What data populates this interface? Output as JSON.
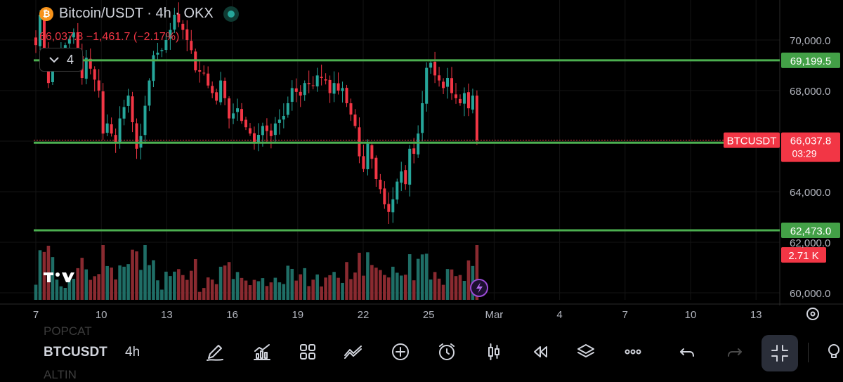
{
  "header": {
    "coin_glyph": "₿",
    "title": "Bitcoin/USDT · 4h · OKX",
    "price_line": "66,037.8 −1,461.7 (−2.17%)"
  },
  "indicators": {
    "count": "4"
  },
  "colors": {
    "up": "#26a69a",
    "down": "#f23645",
    "level_line": "#4caf50",
    "background": "#000000"
  },
  "chart_data": {
    "type": "candlestick",
    "symbol": "BTCUSDT",
    "ylim": [
      59800,
      71200
    ],
    "price_ticks": [
      "70,000.0",
      "68,000.0",
      "64,000.0",
      "62,000.0",
      "60,000.0"
    ],
    "x_ticks": [
      "7",
      "10",
      "13",
      "16",
      "19",
      "22",
      "25",
      "Mar",
      "4",
      "7",
      "10",
      "13"
    ],
    "horizontal_levels": [
      {
        "price": 69199.5,
        "label": "69,199.5"
      },
      {
        "price": 65936.6,
        "label": "65,936.6"
      },
      {
        "price": 62473.0,
        "label": "62,473.0"
      }
    ],
    "last_price": {
      "symbol_label": "BTCUSDT",
      "label": "66,037.8",
      "countdown": "03:29",
      "value": 66037.8
    },
    "volume_label": "2.71 K",
    "close_path": [
      [
        0,
        69800
      ],
      [
        1,
        71000
      ],
      [
        3,
        68300
      ],
      [
        4,
        69200
      ],
      [
        7,
        69800
      ],
      [
        9,
        70300
      ],
      [
        11,
        68500
      ],
      [
        12,
        69300
      ],
      [
        15,
        68000
      ],
      [
        16,
        66300
      ],
      [
        17,
        66700
      ],
      [
        19,
        65900
      ],
      [
        20,
        66900
      ],
      [
        22,
        67800
      ],
      [
        24,
        65700
      ],
      [
        25,
        66200
      ],
      [
        26,
        67400
      ],
      [
        28,
        69400
      ],
      [
        30,
        69600
      ],
      [
        32,
        70400
      ],
      [
        33,
        71000
      ],
      [
        35,
        70400
      ],
      [
        37,
        69600
      ],
      [
        38,
        68800
      ],
      [
        40,
        68700
      ],
      [
        41,
        68200
      ],
      [
        43,
        67600
      ],
      [
        44,
        68400
      ],
      [
        45,
        67700
      ],
      [
        46,
        66900
      ],
      [
        48,
        67300
      ],
      [
        49,
        66800
      ],
      [
        51,
        66300
      ],
      [
        52,
        65900
      ],
      [
        54,
        66600
      ],
      [
        56,
        66200
      ],
      [
        57,
        66700
      ],
      [
        59,
        67000
      ],
      [
        60,
        67500
      ],
      [
        61,
        68100
      ],
      [
        63,
        67800
      ],
      [
        64,
        68300
      ],
      [
        66,
        68200
      ],
      [
        67,
        68600
      ],
      [
        69,
        68400
      ],
      [
        70,
        67900
      ],
      [
        71,
        68300
      ],
      [
        72,
        68000
      ],
      [
        73,
        68100
      ],
      [
        74,
        67500
      ],
      [
        76,
        66600
      ],
      [
        77,
        65400
      ],
      [
        78,
        64900
      ],
      [
        79,
        65900
      ],
      [
        80,
        65300
      ],
      [
        81,
        64500
      ],
      [
        82,
        64100
      ],
      [
        83,
        63500
      ],
      [
        84,
        63200
      ],
      [
        85,
        63700
      ],
      [
        86,
        64400
      ],
      [
        87,
        64800
      ],
      [
        88,
        64300
      ],
      [
        89,
        65700
      ],
      [
        90,
        65500
      ],
      [
        91,
        66300
      ],
      [
        92,
        67500
      ],
      [
        93,
        68900
      ],
      [
        94,
        69100
      ],
      [
        95,
        68600
      ],
      [
        96,
        68400
      ],
      [
        97,
        68100
      ],
      [
        98,
        68500
      ],
      [
        99,
        67900
      ],
      [
        100,
        67700
      ],
      [
        101,
        67500
      ],
      [
        102,
        67900
      ],
      [
        103,
        67300
      ],
      [
        104,
        67800
      ],
      [
        105,
        66037.8
      ]
    ],
    "volume_max": 5.2
  }
}
